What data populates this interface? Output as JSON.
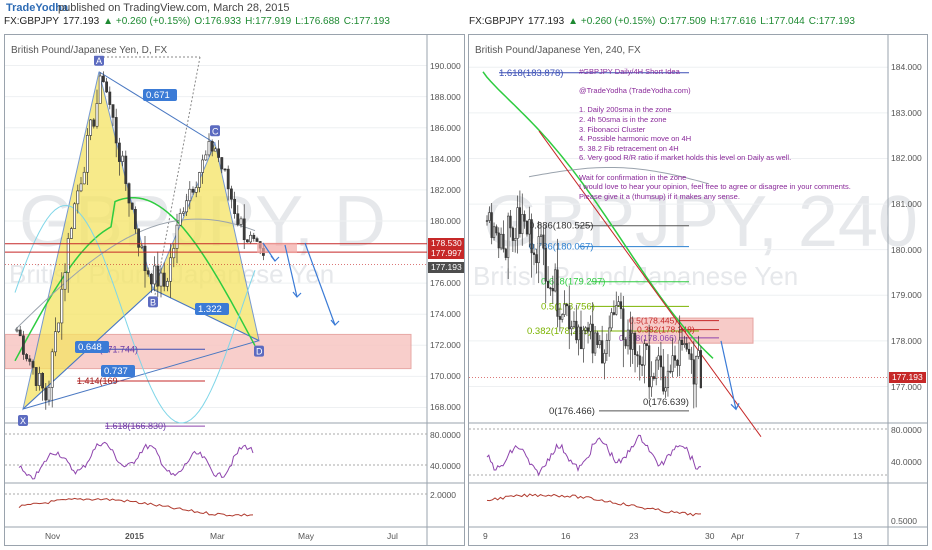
{
  "header": {
    "brand": "TradeYodha",
    "published": "published on TradingView.com, March 28, 2015"
  },
  "left": {
    "ticker": {
      "symbol": "FX:GBPJPY",
      "price": "177.193",
      "change": "+0.260 (+0.15%)",
      "open": "O:176.933",
      "high": "H:177.919",
      "low": "L:176.688",
      "close": "C:177.193"
    },
    "title": "British Pound/Japanese Yen, D, FX",
    "watermark_big": "GBPJPY, D",
    "watermark_small": "British Pound/Japanese Yen",
    "price_axis": [
      "190.000",
      "188.000",
      "186.000",
      "184.000",
      "182.000",
      "180.000",
      "178.000",
      "176.000",
      "174.000",
      "172.000",
      "170.000",
      "168.000"
    ],
    "price_tags": [
      "178.530",
      "177.997",
      "177.193"
    ],
    "time_axis": [
      "Nov",
      "2015",
      "Mar",
      "May",
      "Jul"
    ],
    "rsi_axis": [
      "80.0000",
      "40.0000"
    ],
    "macd_axis": [
      "2.0000"
    ],
    "pattern_points": [
      "A",
      "B",
      "C",
      "D",
      "X"
    ],
    "ratios": [
      "0.671",
      "1.322",
      "0.648",
      "0.737"
    ],
    "fib_labels": [
      "1.272(171.744)",
      "1.414(169",
      "1.618(166.830)"
    ]
  },
  "right": {
    "ticker": {
      "symbol": "FX:GBPJPY",
      "price": "177.193",
      "change": "+0.260 (+0.15%)",
      "open": "O:177.509",
      "high": "H:177.616",
      "low": "L:177.044",
      "close": "C:177.193"
    },
    "title": "British Pound/Japanese Yen, 240, FX",
    "watermark_big": "GBPJPY, 240",
    "watermark_small": "British Pound/Japanese Yen",
    "price_axis": [
      "184.000",
      "183.000",
      "182.000",
      "181.000",
      "180.000",
      "179.000",
      "178.000",
      "177.000"
    ],
    "price_tags": [
      "177.193"
    ],
    "time_axis": [
      "9",
      "16",
      "23",
      "30",
      "Apr",
      "7",
      "13"
    ],
    "rsi_axis": [
      "80.0000",
      "40.0000"
    ],
    "macd_axis": [
      "0.5000"
    ],
    "fib_labels": [
      "1.618(183.878)",
      "0.886(180.525)",
      "0.786(180.067)",
      "0.618(179.297)",
      "0.5(178.756)",
      "0.382(178.216)",
      "0(176.466)",
      "0(176.639)",
      "0.618(178.066)",
      "0.5(178.445)",
      "0.382(178.248)"
    ],
    "idea_text": "#GBPJPY Daily/4H Short Idea\n\n@TradeYodha (TradeYodha.com)\n\n1. Daily 200sma in the zone\n2. 4h 50sma is in the zone\n3. Fibonacci Cluster\n4. Possible harmonic move on 4H\n5. 38.2 Fib retracement on 4H\n6. Very good R/R ratio if market holds this level on Daily as well.\n\nWait for confirmation in the zone\nI would love to hear your opinion, feel free to agree or disagree in your comments.\nPlease give it a (thumsup) if it makes any sense."
  },
  "colors": {
    "up": "#1e8a32",
    "down": "#c62828",
    "candle": "#3a3a3a",
    "pattern_fill": "#f5e463",
    "pattern_line": "#4a78c2",
    "zone": "#f4b6b3",
    "sma_green": "#2ecc40",
    "sma_cyan": "#7fd6e8",
    "rsi": "#8e44ad",
    "macd": "#b03a2e"
  },
  "chart_data": [
    {
      "type": "candlestick",
      "title": "British Pound/Japanese Yen, D, FX",
      "x_ticks": [
        "Nov",
        "2015",
        "Mar",
        "May",
        "Jul"
      ],
      "ylim": [
        167,
        191
      ],
      "pattern": {
        "X": 167.9,
        "A": 189.6,
        "B": 175.6,
        "C": 185.0,
        "D": 172.3
      },
      "resistance_lines": [
        178.53,
        177.997
      ],
      "last_price": 177.193,
      "zone": [
        170.5,
        172.7
      ]
    },
    {
      "type": "candlestick",
      "title": "British Pound/Japanese Yen, 240, FX",
      "x_ticks": [
        "9",
        "16",
        "23",
        "30",
        "Apr",
        "7",
        "13"
      ],
      "ylim": [
        176.2,
        184.3
      ],
      "fib_levels": [
        183.878,
        180.525,
        180.067,
        179.297,
        178.756,
        178.216,
        176.466
      ],
      "zone": [
        178.0,
        178.5
      ],
      "last_price": 177.193
    }
  ]
}
